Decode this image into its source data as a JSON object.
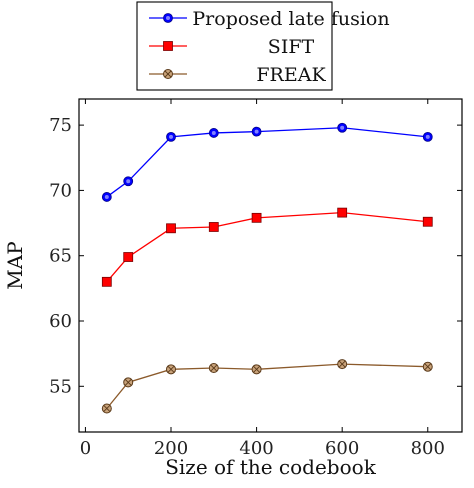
{
  "chart_data": {
    "type": "line",
    "xlabel": "Size of the codebook",
    "ylabel": "MAP",
    "xlim": [
      -15,
      880
    ],
    "ylim": [
      51.5,
      77
    ],
    "x_ticks": [
      0,
      200,
      400,
      600,
      800
    ],
    "y_ticks": [
      55,
      60,
      65,
      70,
      75
    ],
    "grid": false,
    "legend_position": "top-center",
    "x": [
      50,
      100,
      200,
      300,
      400,
      600,
      800
    ],
    "series": [
      {
        "name": "Proposed late fusion",
        "color": "#0000ff",
        "marker": "circle",
        "values": [
          69.5,
          70.7,
          74.1,
          74.4,
          74.5,
          74.8,
          74.1
        ]
      },
      {
        "name": "SIFT",
        "color": "#ff0000",
        "marker": "square",
        "values": [
          63.0,
          64.9,
          67.1,
          67.2,
          67.9,
          68.3,
          67.6
        ]
      },
      {
        "name": "FREAK",
        "color": "#8b5a2b",
        "marker": "circle-x",
        "values": [
          53.3,
          55.3,
          56.3,
          56.4,
          56.3,
          56.7,
          56.5
        ]
      }
    ]
  }
}
